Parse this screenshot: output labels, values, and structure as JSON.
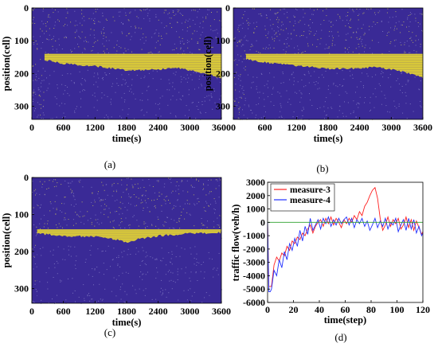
{
  "chart_data": [
    {
      "type": "heatmap",
      "panel_label": "(a)",
      "xlabel": "time(s)",
      "ylabel": "position(cell)",
      "xticks": [
        0,
        600,
        1200,
        1800,
        2400,
        3000,
        3600
      ],
      "yticks": [
        0,
        100,
        200,
        300
      ],
      "xlim": [
        0,
        3600
      ],
      "ylim": [
        0,
        340
      ],
      "colors": {
        "background": "#3a2a96",
        "jam": "#d8c83a"
      },
      "jam_region": {
        "start_time": 240,
        "top_position": 140,
        "bottom_profile": [
          [
            240,
            158
          ],
          [
            600,
            170
          ],
          [
            1200,
            178
          ],
          [
            1800,
            190
          ],
          [
            2400,
            188
          ],
          [
            2700,
            182
          ],
          [
            3000,
            190
          ],
          [
            3300,
            200
          ],
          [
            3600,
            215
          ]
        ]
      }
    },
    {
      "type": "heatmap",
      "panel_label": "(b)",
      "xlabel": "time(s)",
      "ylabel": "position(cell)",
      "xticks": [
        0,
        600,
        1200,
        1800,
        2400,
        3000,
        3600
      ],
      "yticks": [
        0,
        100,
        200,
        300
      ],
      "xlim": [
        0,
        3600
      ],
      "ylim": [
        0,
        340
      ],
      "colors": {
        "background": "#3a2a96",
        "jam": "#d8c83a"
      },
      "jam_region": {
        "start_time": 240,
        "top_position": 140,
        "bottom_profile": [
          [
            240,
            156
          ],
          [
            600,
            166
          ],
          [
            1200,
            176
          ],
          [
            1800,
            186
          ],
          [
            2400,
            185
          ],
          [
            2700,
            180
          ],
          [
            3000,
            188
          ],
          [
            3300,
            198
          ],
          [
            3600,
            212
          ]
        ]
      }
    },
    {
      "type": "heatmap",
      "panel_label": "(c)",
      "xlabel": "time(s)",
      "ylabel": "position(cell)",
      "xticks": [
        0,
        600,
        1200,
        1800,
        2400,
        3000,
        3600
      ],
      "yticks": [
        0,
        100,
        200,
        300
      ],
      "xlim": [
        0,
        3600
      ],
      "ylim": [
        0,
        340
      ],
      "colors": {
        "background": "#3a2a96",
        "jam": "#d8c83a"
      },
      "jam_region": {
        "start_time": 100,
        "top_position": 140,
        "bottom_profile": [
          [
            100,
            152
          ],
          [
            600,
            158
          ],
          [
            1200,
            160
          ],
          [
            1600,
            168
          ],
          [
            1800,
            175
          ],
          [
            2000,
            168
          ],
          [
            2400,
            158
          ],
          [
            3000,
            152
          ],
          [
            3600,
            150
          ]
        ]
      }
    },
    {
      "type": "line",
      "panel_label": "(d)",
      "xlabel": "time(step)",
      "ylabel": "traffic flow(veh/h)",
      "xlim": [
        0,
        120
      ],
      "ylim": [
        -6000,
        3000
      ],
      "xticks": [
        0,
        20,
        40,
        60,
        80,
        100,
        120
      ],
      "yticks": [
        -6000,
        -5000,
        -4000,
        -3000,
        -2000,
        -1000,
        0,
        1000,
        2000,
        3000
      ],
      "legend_position": "top-left",
      "series": [
        {
          "name": "measure-3",
          "color": "#ff2020",
          "x": [
            0,
            1,
            3,
            5,
            7,
            9,
            11,
            13,
            15,
            17,
            19,
            21,
            23,
            25,
            27,
            29,
            31,
            33,
            35,
            37,
            39,
            41,
            43,
            45,
            47,
            49,
            51,
            53,
            55,
            57,
            59,
            61,
            63,
            65,
            67,
            69,
            71,
            73,
            75,
            77,
            79,
            81,
            83,
            85,
            87,
            89,
            91,
            93,
            95,
            97,
            99,
            101,
            103,
            105,
            107,
            109,
            111,
            113,
            115,
            117,
            119,
            120
          ],
          "y": [
            0,
            -4800,
            -4800,
            -3200,
            -2600,
            -2900,
            -2300,
            -2500,
            -1800,
            -2100,
            -1400,
            -1600,
            -1100,
            -1300,
            -800,
            -1000,
            -500,
            -200,
            -800,
            -300,
            0,
            200,
            -300,
            300,
            -100,
            400,
            -200,
            300,
            0,
            -400,
            200,
            -100,
            300,
            0,
            500,
            200,
            800,
            500,
            1200,
            1500,
            2000,
            2400,
            2600,
            1800,
            300,
            -600,
            -200,
            400,
            -300,
            200,
            -100,
            300,
            -500,
            -200,
            400,
            -400,
            200,
            -600,
            100,
            -400,
            -900,
            -700
          ]
        },
        {
          "name": "measure-4",
          "color": "#2030ff",
          "x": [
            0,
            1,
            2,
            3,
            5,
            7,
            9,
            11,
            13,
            15,
            17,
            19,
            21,
            23,
            25,
            27,
            29,
            31,
            33,
            35,
            37,
            39,
            41,
            43,
            45,
            47,
            49,
            51,
            53,
            55,
            57,
            59,
            61,
            63,
            65,
            67,
            69,
            71,
            73,
            75,
            77,
            79,
            81,
            83,
            85,
            87,
            89,
            91,
            93,
            95,
            97,
            99,
            101,
            103,
            105,
            107,
            109,
            111,
            113,
            115,
            117,
            119,
            120
          ],
          "y": [
            0,
            -5200,
            -5200,
            -5000,
            -3600,
            -4000,
            -2800,
            -3400,
            -2200,
            -2800,
            -1600,
            -2100,
            -1200,
            -1800,
            -600,
            -1400,
            -300,
            -900,
            300,
            -600,
            -200,
            200,
            -500,
            300,
            -100,
            400,
            -300,
            200,
            -200,
            300,
            -100,
            200,
            400,
            -200,
            300,
            -400,
            200,
            -100,
            300,
            -300,
            100,
            -600,
            -200,
            300,
            -400,
            100,
            -300,
            300,
            -500,
            0,
            -200,
            300,
            -700,
            -200,
            200,
            -600,
            300,
            -500,
            200,
            -800,
            -300,
            -1000,
            -800
          ]
        },
        {
          "name": "",
          "color": "#2ca02c",
          "x": [
            0,
            120
          ],
          "y": [
            0,
            0
          ]
        }
      ]
    }
  ]
}
